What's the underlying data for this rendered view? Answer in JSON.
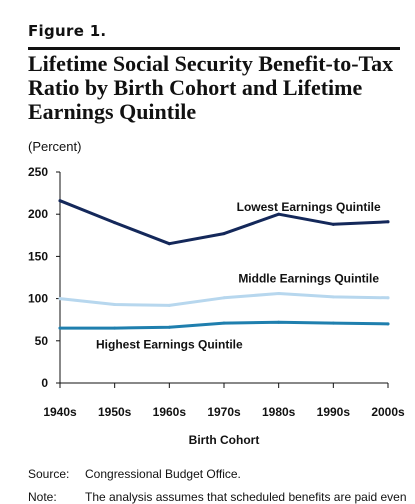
{
  "figure_label": "Figure 1.",
  "title": "Lifetime Social Security Benefit-to-Tax Ratio by Birth Cohort and Lifetime Earnings Quintile",
  "unit_label": "(Percent)",
  "source": {
    "label": "Source:",
    "text": "Congressional Budget Office."
  },
  "note": {
    "label": "Note:",
    "text": "The analysis assumes that scheduled benefits are paid even"
  },
  "chart_data": {
    "type": "line",
    "categories": [
      "1940s",
      "1950s",
      "1960s",
      "1970s",
      "1980s",
      "1990s",
      "2000s"
    ],
    "xlabel": "Birth Cohort",
    "ylabel": "(Percent)",
    "ylim": [
      0,
      250
    ],
    "yticks": [
      0,
      50,
      100,
      150,
      200,
      250
    ],
    "grid": false,
    "series": [
      {
        "name": "Lowest Earnings Quintile",
        "color": "#14285a",
        "values": [
          216,
          190,
          165,
          177,
          200,
          188,
          191
        ]
      },
      {
        "name": "Middle Earnings Quintile",
        "color": "#b7d7ee",
        "values": [
          100,
          93,
          92,
          101,
          106,
          102,
          101
        ]
      },
      {
        "name": "Highest Earnings Quintile",
        "color": "#1f7fae",
        "values": [
          65,
          65,
          66,
          71,
          72,
          71,
          70
        ]
      }
    ]
  }
}
